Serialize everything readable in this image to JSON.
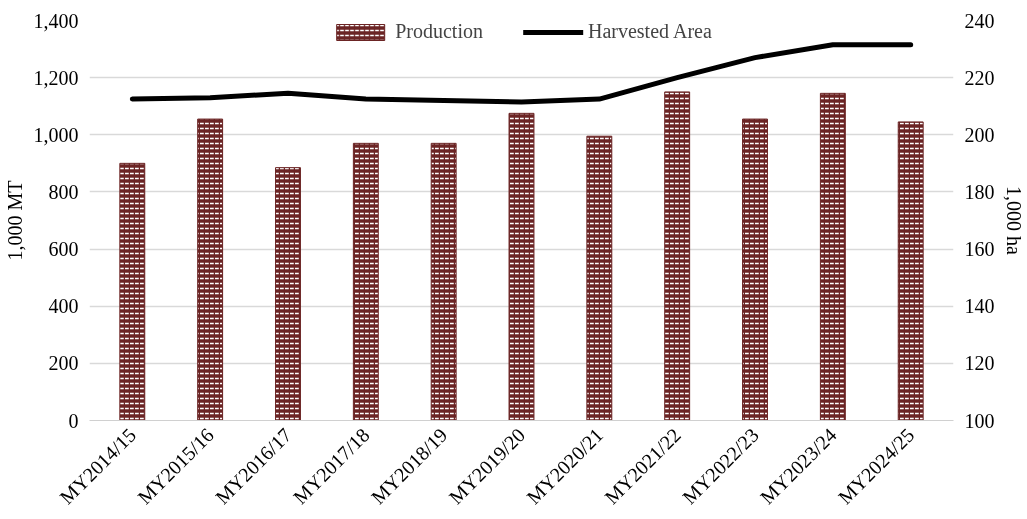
{
  "chart_data": {
    "type": "bar",
    "ylabel": "1,000 MT",
    "y2label": "1,000 ha",
    "categories": [
      "MY2014/15",
      "MY2015/16",
      "MY2016/17",
      "MY2017/18",
      "MY2018/19",
      "MY2019/20",
      "MY2020/21",
      "MY2021/22",
      "MY2022/23",
      "MY2023/24",
      "MY2024/25"
    ],
    "series": [
      {
        "name": "Production",
        "color": "#6b2424",
        "values": [
          900,
          1055,
          885,
          970,
          970,
          1075,
          995,
          1150,
          1055,
          1145,
          1045
        ]
      },
      {
        "name": "Harvested Area",
        "type": "line",
        "axis": "y2",
        "color": "#000000",
        "values": [
          212.5,
          213,
          214.5,
          212.5,
          212,
          211.5,
          212.5,
          220,
          227,
          231.5,
          231.5
        ]
      }
    ],
    "ylim": [
      0,
      1400
    ],
    "yticks": [
      {
        "value": 0,
        "label": "0"
      },
      {
        "value": 200,
        "label": "200"
      },
      {
        "value": 400,
        "label": "400"
      },
      {
        "value": 600,
        "label": "600"
      },
      {
        "value": 800,
        "label": "800"
      },
      {
        "value": 1000,
        "label": "1,000"
      },
      {
        "value": 1200,
        "label": "1,200"
      },
      {
        "value": 1400,
        "label": "1,400"
      }
    ],
    "y2lim": [
      100,
      240
    ],
    "y2ticks": [
      100,
      120,
      140,
      160,
      180,
      200,
      220,
      240
    ],
    "grid": "y",
    "legend": "top"
  }
}
